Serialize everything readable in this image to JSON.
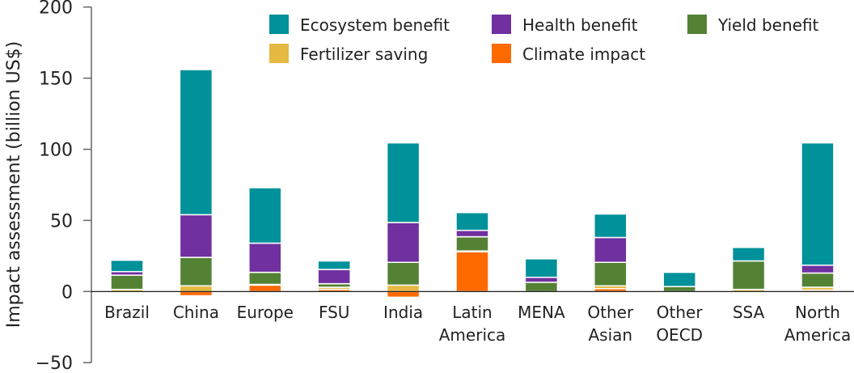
{
  "chart_data": {
    "type": "bar",
    "stacked": true,
    "ylabel": "Impact assessment (billion US$)",
    "xlabel": "",
    "ylim": [
      -50,
      200
    ],
    "yticks": [
      -50,
      0,
      50,
      100,
      150,
      200
    ],
    "ytick_labels": [
      "−50",
      "0",
      "50",
      "100",
      "150",
      "200"
    ],
    "grid": false,
    "legend_position": "top",
    "categories": [
      [
        "Brazil"
      ],
      [
        "China"
      ],
      [
        "Europe"
      ],
      [
        "FSU"
      ],
      [
        "India"
      ],
      [
        "Latin",
        "America"
      ],
      [
        "MENA"
      ],
      [
        "Other",
        "Asian"
      ],
      [
        "Other",
        "OECD"
      ],
      [
        "SSA"
      ],
      [
        "North",
        "America"
      ]
    ],
    "series": [
      {
        "name": "Climate impact",
        "color": "#FF6A00",
        "values": [
          0,
          -3,
          4.5,
          1.5,
          -4,
          28,
          0,
          2,
          0,
          0,
          1
        ]
      },
      {
        "name": "Fertilizer saving",
        "color": "#E5B942",
        "values": [
          1.5,
          4,
          0.5,
          1.5,
          4.5,
          0.5,
          0,
          2,
          0,
          1.5,
          2
        ]
      },
      {
        "name": "Yield benefit",
        "color": "#548235",
        "values": [
          10,
          20,
          8.5,
          2.5,
          16,
          10,
          6.5,
          16.5,
          3.5,
          20,
          10
        ]
      },
      {
        "name": "Health benefit",
        "color": "#7030A0",
        "values": [
          2.5,
          30,
          20.5,
          10,
          28,
          4.5,
          3.5,
          17.5,
          0,
          0,
          5.5
        ]
      },
      {
        "name": "Ecosystem benefit",
        "color": "#00919A",
        "values": [
          8,
          102,
          39,
          6,
          56,
          12.5,
          13,
          16.5,
          10,
          9.5,
          86
        ]
      }
    ],
    "legend_order": [
      "Ecosystem benefit",
      "Health benefit",
      "Yield benefit",
      "Fertilizer saving",
      "Climate impact"
    ]
  }
}
